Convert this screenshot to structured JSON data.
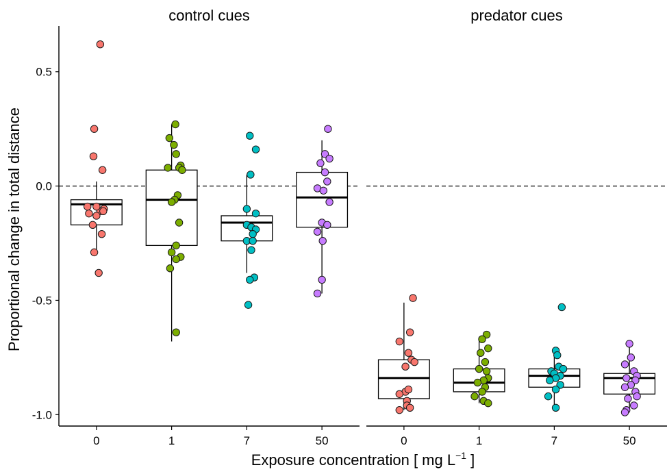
{
  "chart_data": {
    "type": "box",
    "facets": [
      "control cues",
      "predator cues"
    ],
    "categories": [
      "0",
      "1",
      "7",
      "50"
    ],
    "xlabel": "Exposure concentration [ mg L",
    "xlabel_sup": "−1",
    "xlabel_end": " ]",
    "ylabel": "Proportional change in total distance",
    "ylim": [
      -1.05,
      0.7
    ],
    "yticks": [
      0.5,
      0.0,
      -0.5,
      -1.0
    ],
    "ytick_labels": [
      "0.5",
      "0.0",
      "-0.5",
      "-1.0"
    ],
    "reference_line": 0,
    "group_colors": {
      "0": "#F8766D",
      "1": "#7CAE00",
      "7": "#00BFC4",
      "50": "#C77CFF"
    },
    "boxes": [
      {
        "facet": "control cues",
        "group": "0",
        "q1": -0.17,
        "median": -0.08,
        "q3": -0.06,
        "whisker_low": -0.29,
        "whisker_high": 0.02
      },
      {
        "facet": "control cues",
        "group": "1",
        "q1": -0.26,
        "median": -0.06,
        "q3": 0.07,
        "whisker_low": -0.68,
        "whisker_high": 0.27
      },
      {
        "facet": "control cues",
        "group": "7",
        "q1": -0.24,
        "median": -0.16,
        "q3": -0.13,
        "whisker_low": -0.38,
        "whisker_high": 0.05
      },
      {
        "facet": "control cues",
        "group": "50",
        "q1": -0.18,
        "median": -0.05,
        "q3": 0.06,
        "whisker_low": -0.47,
        "whisker_high": 0.2
      },
      {
        "facet": "predator cues",
        "group": "0",
        "q1": -0.93,
        "median": -0.84,
        "q3": -0.76,
        "whisker_low": -0.98,
        "whisker_high": -0.51
      },
      {
        "facet": "predator cues",
        "group": "1",
        "q1": -0.9,
        "median": -0.86,
        "q3": -0.8,
        "whisker_low": -0.95,
        "whisker_high": -0.66
      },
      {
        "facet": "predator cues",
        "group": "7",
        "q1": -0.88,
        "median": -0.83,
        "q3": -0.8,
        "whisker_low": -0.96,
        "whisker_high": -0.72
      },
      {
        "facet": "predator cues",
        "group": "50",
        "q1": -0.91,
        "median": -0.84,
        "q3": -0.82,
        "whisker_low": -0.99,
        "whisker_high": -0.69
      }
    ],
    "points": [
      {
        "facet": "control cues",
        "group": "0",
        "values": [
          0.62,
          0.25,
          0.13,
          0.07,
          -0.09,
          -0.1,
          -0.11,
          -0.12,
          -0.13,
          -0.11,
          -0.17,
          -0.21,
          -0.29,
          -0.38,
          -0.09
        ],
        "jitter": [
          0.05,
          -0.03,
          -0.04,
          0.08,
          -0.12,
          0.1,
          0.05,
          -0.1,
          0.0,
          0.09,
          -0.05,
          0.07,
          -0.03,
          0.03,
          0.0
        ]
      },
      {
        "facet": "control cues",
        "group": "1",
        "values": [
          0.27,
          0.21,
          0.18,
          0.14,
          0.09,
          0.08,
          0.08,
          0.07,
          -0.04,
          -0.06,
          -0.07,
          -0.16,
          -0.26,
          -0.29,
          -0.31,
          -0.32,
          -0.36,
          -0.64
        ],
        "jitter": [
          0.05,
          -0.03,
          0.03,
          0.06,
          0.12,
          0.1,
          -0.05,
          0.14,
          0.08,
          0.04,
          0.0,
          0.1,
          0.06,
          0.0,
          0.12,
          0.06,
          -0.02,
          0.06
        ]
      },
      {
        "facet": "control cues",
        "group": "7",
        "values": [
          0.22,
          0.16,
          0.05,
          -0.1,
          -0.12,
          -0.17,
          -0.18,
          -0.19,
          -0.21,
          -0.24,
          -0.24,
          -0.28,
          -0.4,
          -0.41,
          -0.52
        ],
        "jitter": [
          0.04,
          0.12,
          0.05,
          0.0,
          0.12,
          0.0,
          0.06,
          0.12,
          0.08,
          0.0,
          0.08,
          0.06,
          0.1,
          0.04,
          0.02
        ]
      },
      {
        "facet": "control cues",
        "group": "50",
        "values": [
          0.25,
          0.14,
          0.12,
          0.1,
          0.06,
          0.02,
          -0.01,
          -0.02,
          -0.07,
          -0.16,
          -0.17,
          -0.2,
          -0.24,
          -0.41,
          -0.47
        ],
        "jitter": [
          0.08,
          0.04,
          0.1,
          -0.02,
          0.04,
          0.07,
          -0.06,
          0.02,
          0.1,
          0.0,
          0.07,
          -0.06,
          0.01,
          0.0,
          -0.06
        ]
      },
      {
        "facet": "predator cues",
        "group": "0",
        "values": [
          -0.49,
          -0.64,
          -0.68,
          -0.73,
          -0.76,
          -0.77,
          -0.79,
          -0.9,
          -0.89,
          -0.91,
          -0.94,
          -0.96,
          -0.97,
          -0.98
        ],
        "jitter": [
          0.12,
          0.08,
          -0.06,
          0.06,
          0.1,
          0.14,
          0.02,
          0.02,
          0.06,
          -0.06,
          0.04,
          0.04,
          0.08,
          -0.06
        ]
      },
      {
        "facet": "predator cues",
        "group": "1",
        "values": [
          -0.65,
          -0.67,
          -0.71,
          -0.73,
          -0.77,
          -0.8,
          -0.81,
          -0.84,
          -0.85,
          -0.86,
          -0.88,
          -0.9,
          -0.92,
          -0.94,
          -0.95
        ],
        "jitter": [
          0.1,
          0.04,
          0.12,
          0.02,
          0.08,
          0.0,
          0.1,
          0.12,
          0.06,
          -0.02,
          0.08,
          0.04,
          -0.06,
          0.06,
          0.12
        ]
      },
      {
        "facet": "predator cues",
        "group": "7",
        "values": [
          -0.53,
          -0.72,
          -0.74,
          -0.79,
          -0.8,
          -0.81,
          -0.82,
          -0.83,
          -0.84,
          -0.85,
          -0.87,
          -0.89,
          -0.92,
          -0.97
        ],
        "jitter": [
          0.1,
          0.02,
          0.04,
          0.06,
          0.12,
          -0.04,
          0.0,
          0.08,
          0.02,
          -0.06,
          0.08,
          0.02,
          -0.08,
          0.02
        ]
      },
      {
        "facet": "predator cues",
        "group": "50",
        "values": [
          -0.69,
          -0.75,
          -0.78,
          -0.81,
          -0.83,
          -0.84,
          -0.85,
          -0.87,
          -0.88,
          -0.9,
          -0.92,
          -0.93,
          -0.96,
          -0.98,
          -0.99
        ],
        "jitter": [
          0.0,
          0.02,
          -0.06,
          0.06,
          0.1,
          -0.04,
          0.08,
          0.02,
          -0.06,
          0.08,
          0.1,
          -0.02,
          0.06,
          -0.04,
          -0.06
        ]
      }
    ]
  }
}
